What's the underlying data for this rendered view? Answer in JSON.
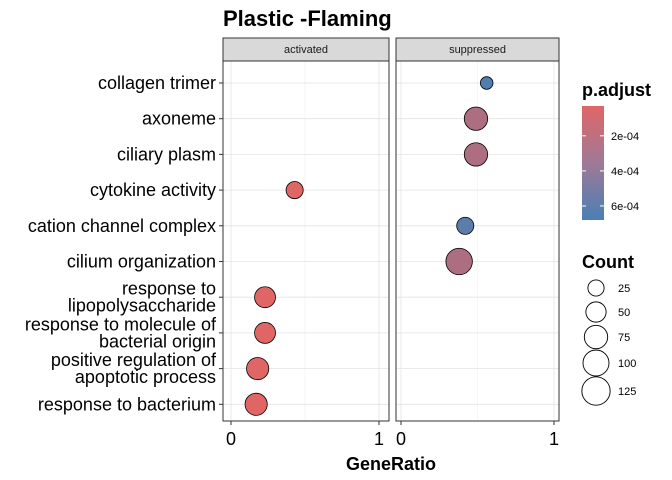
{
  "chart_data": {
    "type": "scatter",
    "title": "Plastic -Flaming",
    "xlabel": "GeneRatio",
    "ylabel": "",
    "xlim": [
      0,
      1
    ],
    "x_ticks": [
      "0",
      "1"
    ],
    "panels": [
      "activated",
      "suppressed"
    ],
    "categories": [
      "collagen trimer",
      "axoneme",
      "ciliary plasm",
      "cytokine activity",
      "cation channel complex",
      "cilium organization",
      "response to\nlipopolysaccharide",
      "response to molecule of\nbacterial origin",
      "positive regulation of\napoptotic process",
      "response to bacterium"
    ],
    "points": [
      {
        "panel": "activated",
        "category": "cytokine activity",
        "x": 0.43,
        "count": 30,
        "p_adjust": 3e-05
      },
      {
        "panel": "activated",
        "category": "response to\nlipopolysaccharide",
        "x": 0.23,
        "count": 55,
        "p_adjust": 3e-05
      },
      {
        "panel": "activated",
        "category": "response to molecule of\nbacterial origin",
        "x": 0.23,
        "count": 55,
        "p_adjust": 3e-05
      },
      {
        "panel": "activated",
        "category": "positive regulation of\napoptotic process",
        "x": 0.18,
        "count": 65,
        "p_adjust": 3e-05
      },
      {
        "panel": "activated",
        "category": "response to bacterium",
        "x": 0.17,
        "count": 65,
        "p_adjust": 3e-05
      },
      {
        "panel": "suppressed",
        "category": "collagen trimer",
        "x": 0.56,
        "count": 10,
        "p_adjust": 0.00065
      },
      {
        "panel": "suppressed",
        "category": "axoneme",
        "x": 0.49,
        "count": 75,
        "p_adjust": 0.00025
      },
      {
        "panel": "suppressed",
        "category": "ciliary plasm",
        "x": 0.49,
        "count": 75,
        "p_adjust": 0.00025
      },
      {
        "panel": "suppressed",
        "category": "cation channel complex",
        "x": 0.42,
        "count": 30,
        "p_adjust": 0.0006
      },
      {
        "panel": "suppressed",
        "category": "cilium organization",
        "x": 0.38,
        "count": 105,
        "p_adjust": 0.00025
      }
    ],
    "legend_color": {
      "title": "p.adjust",
      "labels": [
        "2e-04",
        "4e-04",
        "6e-04"
      ],
      "values": [
        0.0002,
        0.0004,
        0.0006
      ],
      "range": [
        3e-05,
        0.00068
      ],
      "low_color": "#e06666",
      "high_color": "#4a7fb5"
    },
    "legend_size": {
      "title": "Count",
      "labels": [
        "25",
        "50",
        "75",
        "100",
        "125"
      ],
      "values": [
        25,
        50,
        75,
        100,
        125
      ]
    }
  }
}
